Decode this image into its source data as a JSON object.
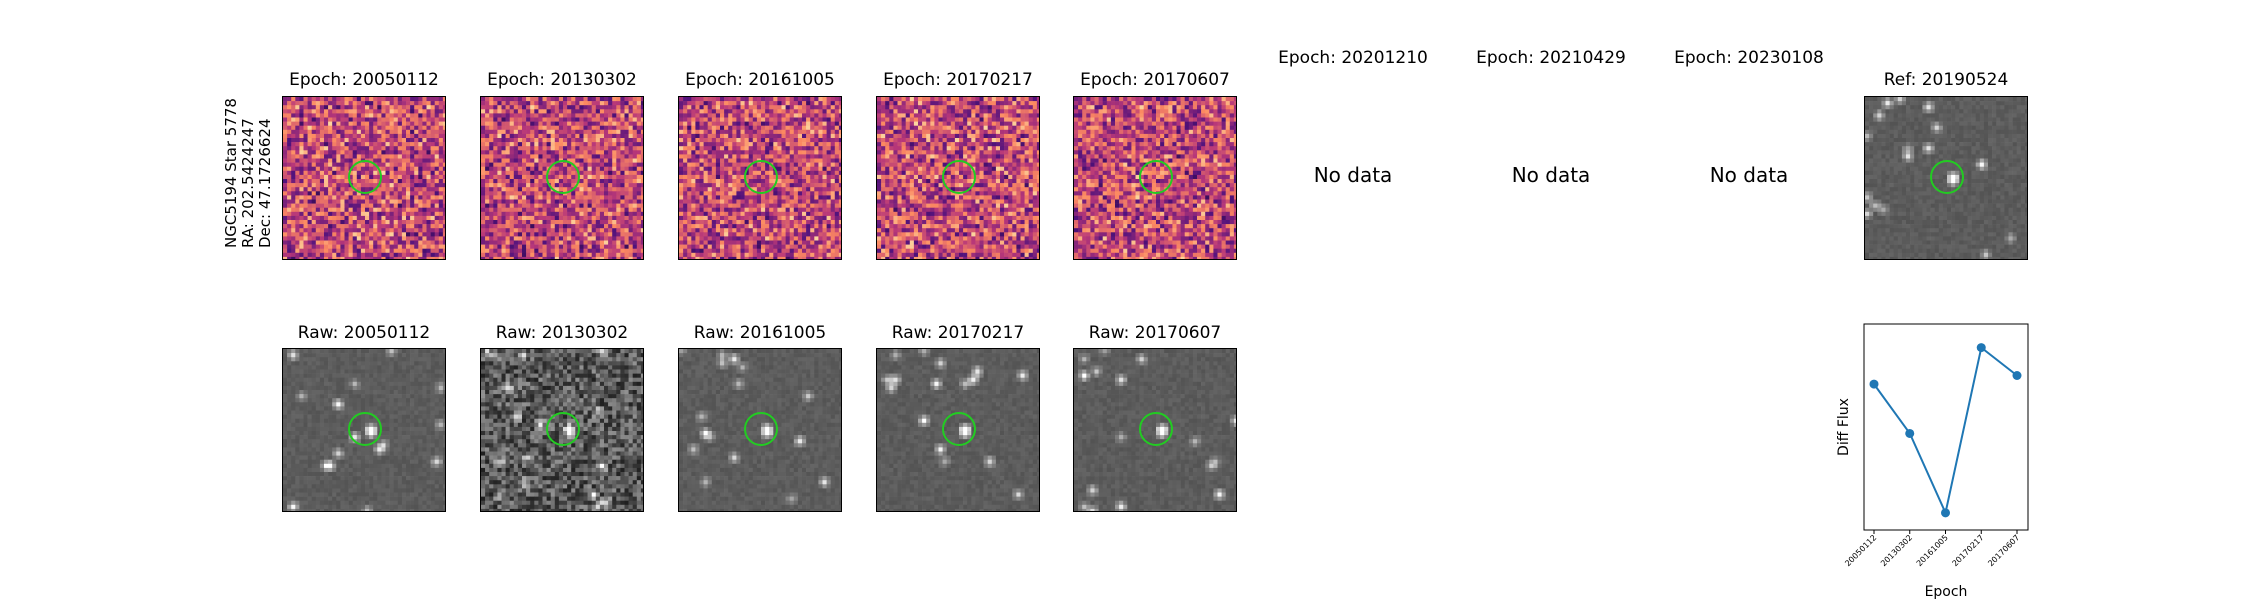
{
  "star_label": {
    "line1": "NGC5194 Star 5778",
    "line2": "RA: 202.5424247",
    "line3": "Dec: 47.1726624"
  },
  "diff_row": [
    {
      "title": "Epoch: 20050112",
      "has_data": true,
      "palette": "magma",
      "seed": 11
    },
    {
      "title": "Epoch: 20130302",
      "has_data": true,
      "palette": "magma",
      "seed": 23
    },
    {
      "title": "Epoch: 20161005",
      "has_data": true,
      "palette": "magma",
      "seed": 37
    },
    {
      "title": "Epoch: 20170217",
      "has_data": true,
      "palette": "magma",
      "seed": 41
    },
    {
      "title": "Epoch: 20170607",
      "has_data": true,
      "palette": "magma",
      "seed": 53
    },
    {
      "title": "Epoch: 20201210",
      "has_data": false,
      "nodata_text": "No data"
    },
    {
      "title": "Epoch: 20210429",
      "has_data": false,
      "nodata_text": "No data"
    },
    {
      "title": "Epoch: 20230108",
      "has_data": false,
      "nodata_text": "No data"
    },
    {
      "title": "Ref: 20190524",
      "has_data": true,
      "palette": "gray",
      "seed": 67
    }
  ],
  "raw_row": [
    {
      "title": "Raw: 20050112",
      "palette": "gray",
      "seed": 71
    },
    {
      "title": "Raw: 20130302",
      "palette": "gray-noisy",
      "seed": 83
    },
    {
      "title": "Raw: 20161005",
      "palette": "gray",
      "seed": 97
    },
    {
      "title": "Raw: 20170217",
      "palette": "gray",
      "seed": 101
    },
    {
      "title": "Raw: 20170607",
      "palette": "gray",
      "seed": 113
    }
  ],
  "colors": {
    "circle": "#22cc22",
    "line": "#1f77b4"
  },
  "chart_data": {
    "type": "line",
    "categories": [
      "20050112",
      "20130302",
      "20161005",
      "20170217",
      "20170607"
    ],
    "values": [
      0.68,
      0.45,
      0.08,
      0.85,
      0.72
    ],
    "xlabel": "Epoch",
    "ylabel": "Diff Flux",
    "ylim": [
      0,
      0.96
    ],
    "grid": false,
    "y_ticks_shown": false
  }
}
